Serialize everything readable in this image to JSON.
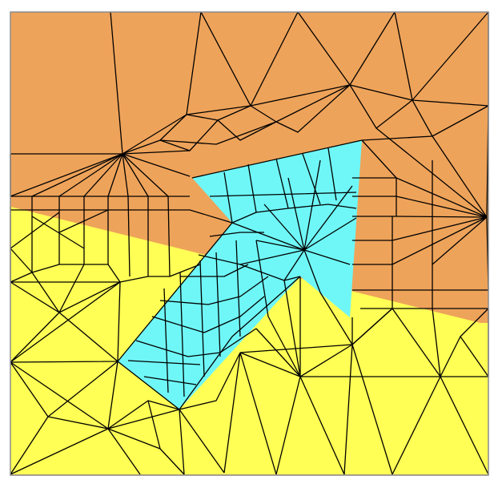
{
  "colors": {
    "background": "#ffffff",
    "frame": "#8c8c8c",
    "region_upper": "#EEA35A",
    "region_lower": "#FFFF55",
    "region_arrow": "#6FF7F7",
    "mesh_line": "#000000"
  },
  "regions": [
    {
      "name": "upper-region",
      "fill": "#EEA35A"
    },
    {
      "name": "lower-region",
      "fill": "#FFFF55"
    },
    {
      "name": "arrow-inclusion",
      "fill": "#6FF7F7"
    }
  ]
}
